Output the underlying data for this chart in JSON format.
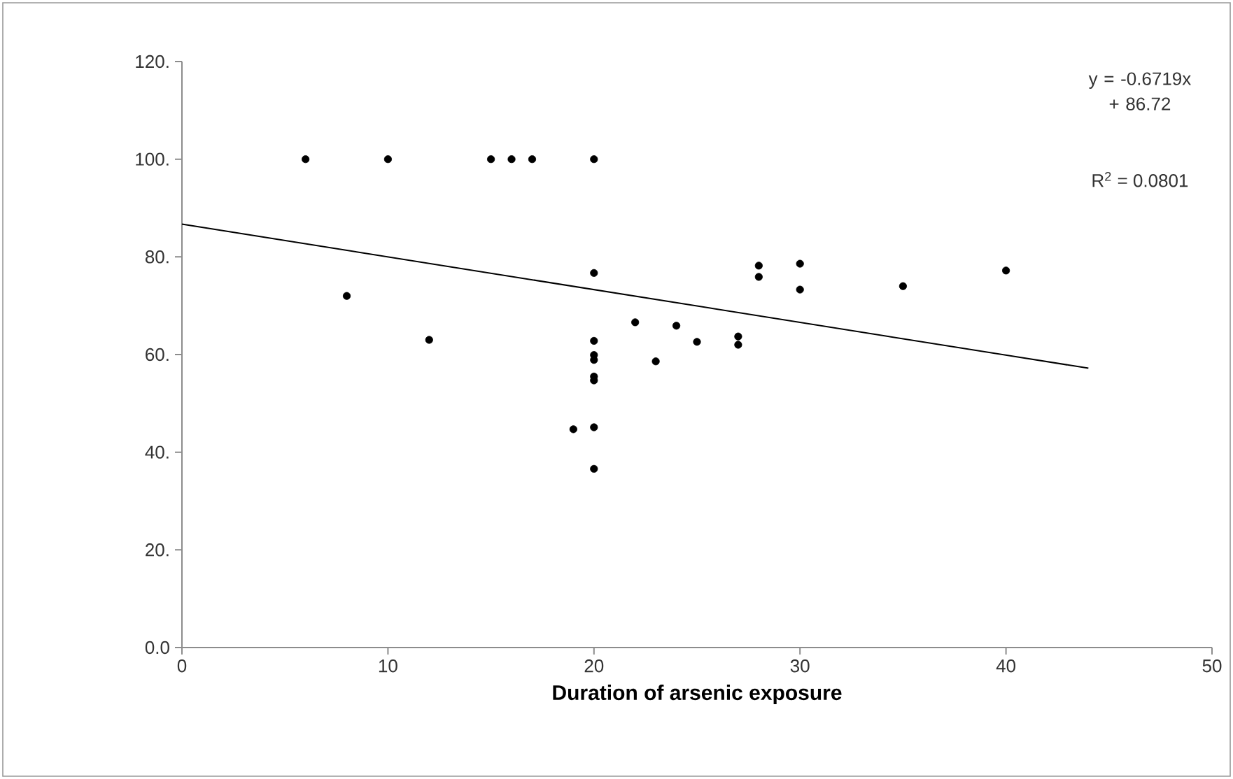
{
  "chart_data": {
    "type": "scatter",
    "xlabel": "Duration of arsenic exposure",
    "xlim": [
      0,
      50
    ],
    "xticks": [
      0,
      10,
      20,
      30,
      40,
      50
    ],
    "ylim": [
      0,
      120
    ],
    "yticks": [
      {
        "value": 0,
        "label": "0.0"
      },
      {
        "value": 20,
        "label": "20."
      },
      {
        "value": 40,
        "label": "40."
      },
      {
        "value": 60,
        "label": "60."
      },
      {
        "value": 80,
        "label": "80."
      },
      {
        "value": 100,
        "label": "100."
      },
      {
        "value": 120,
        "label": "120."
      }
    ],
    "grid": false,
    "marker": "circle",
    "annotations": [
      "y = -0.6719x + 86.72",
      "R$^{2}$ = 0.0801"
    ],
    "series": [
      {
        "color": "#000000",
        "x": [
          6,
          10,
          15,
          16,
          17,
          20,
          8,
          12,
          20,
          19,
          20,
          20,
          20,
          20,
          20,
          20,
          20,
          22,
          24,
          25,
          23,
          27,
          27,
          28,
          28,
          30,
          30,
          35,
          40
        ],
        "values": [
          100,
          100,
          100,
          100,
          100,
          100,
          72,
          63,
          76.7,
          44.7,
          45.1,
          36.6,
          54.7,
          58.9,
          59.9,
          62.8,
          55.5,
          66.6,
          65.9,
          62.6,
          58.6,
          63.7,
          62,
          78.2,
          75.9,
          78.6,
          73.3,
          74,
          77.2
        ]
      },
      {
        "type": "line",
        "color": "#000000",
        "marker": "none",
        "x": [
          0,
          44
        ],
        "values": [
          86.7,
          57.2
        ]
      }
    ]
  }
}
